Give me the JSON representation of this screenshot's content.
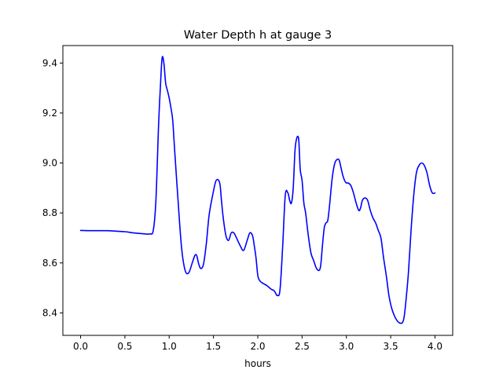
{
  "chart_data": {
    "type": "line",
    "title": "Water Depth h at gauge 3",
    "xlabel": "hours",
    "ylabel": "",
    "xlim": [
      -0.2,
      4.2
    ],
    "ylim": [
      8.31,
      9.47
    ],
    "grid": false,
    "x_ticks": [
      0.0,
      0.5,
      1.0,
      1.5,
      2.0,
      2.5,
      3.0,
      3.5,
      4.0
    ],
    "x_tick_labels": [
      "0.0",
      "0.5",
      "1.0",
      "1.5",
      "2.0",
      "2.5",
      "3.0",
      "3.5",
      "4.0"
    ],
    "y_ticks": [
      8.4,
      8.6,
      8.8,
      9.0,
      9.2,
      9.4
    ],
    "y_tick_labels": [
      "8.4",
      "8.6",
      "8.8",
      "9.0",
      "9.2",
      "9.4"
    ],
    "series": [
      {
        "color": "#0000ff",
        "x": [
          0.0,
          0.1,
          0.2,
          0.3,
          0.4,
          0.5,
          0.6,
          0.7,
          0.78,
          0.82,
          0.85,
          0.88,
          0.9,
          0.92,
          0.94,
          0.96,
          0.98,
          1.0,
          1.02,
          1.04,
          1.06,
          1.1,
          1.14,
          1.18,
          1.22,
          1.26,
          1.29,
          1.31,
          1.33,
          1.35,
          1.37,
          1.39,
          1.42,
          1.45,
          1.49,
          1.53,
          1.57,
          1.59,
          1.61,
          1.64,
          1.67,
          1.7,
          1.73,
          1.76,
          1.8,
          1.84,
          1.88,
          1.91,
          1.94,
          1.96,
          1.98,
          2.0,
          2.02,
          2.05,
          2.1,
          2.15,
          2.18,
          2.2,
          2.22,
          2.25,
          2.28,
          2.31,
          2.34,
          2.36,
          2.38,
          2.4,
          2.42,
          2.44,
          2.46,
          2.47,
          2.48,
          2.5,
          2.52,
          2.54,
          2.57,
          2.6,
          2.63,
          2.66,
          2.69,
          2.71,
          2.73,
          2.75,
          2.77,
          2.79,
          2.81,
          2.84,
          2.87,
          2.9,
          2.92,
          2.94,
          2.96,
          2.98,
          3.0,
          3.02,
          3.05,
          3.08,
          3.11,
          3.14,
          3.16,
          3.18,
          3.21,
          3.24,
          3.27,
          3.3,
          3.33,
          3.36,
          3.39,
          3.42,
          3.45,
          3.48,
          3.51,
          3.54,
          3.57,
          3.6,
          3.63,
          3.65,
          3.67,
          3.7,
          3.73,
          3.76,
          3.79,
          3.82,
          3.85,
          3.88,
          3.91,
          3.94,
          3.97,
          4.0
        ],
        "y": [
          8.73,
          8.729,
          8.729,
          8.729,
          8.727,
          8.725,
          8.72,
          8.717,
          8.716,
          8.73,
          8.85,
          9.15,
          9.3,
          9.42,
          9.4,
          9.32,
          9.29,
          9.26,
          9.22,
          9.17,
          9.06,
          8.85,
          8.66,
          8.57,
          8.56,
          8.6,
          8.63,
          8.63,
          8.6,
          8.58,
          8.58,
          8.6,
          8.68,
          8.79,
          8.87,
          8.93,
          8.92,
          8.85,
          8.78,
          8.71,
          8.69,
          8.72,
          8.72,
          8.7,
          8.67,
          8.65,
          8.69,
          8.72,
          8.71,
          8.67,
          8.62,
          8.55,
          8.53,
          8.52,
          8.51,
          8.495,
          8.49,
          8.48,
          8.47,
          8.49,
          8.66,
          8.87,
          8.88,
          8.85,
          8.84,
          8.9,
          9.05,
          9.1,
          9.1,
          9.04,
          8.97,
          8.93,
          8.84,
          8.8,
          8.71,
          8.64,
          8.61,
          8.58,
          8.57,
          8.59,
          8.67,
          8.74,
          8.76,
          8.77,
          8.83,
          8.94,
          9.0,
          9.015,
          9.01,
          8.98,
          8.95,
          8.93,
          8.92,
          8.92,
          8.91,
          8.88,
          8.84,
          8.81,
          8.82,
          8.85,
          8.86,
          8.85,
          8.81,
          8.78,
          8.76,
          8.73,
          8.7,
          8.62,
          8.55,
          8.47,
          8.42,
          8.39,
          8.37,
          8.36,
          8.36,
          8.38,
          8.44,
          8.56,
          8.73,
          8.87,
          8.96,
          8.99,
          9.0,
          8.99,
          8.96,
          8.91,
          8.88,
          8.88
        ]
      }
    ]
  }
}
